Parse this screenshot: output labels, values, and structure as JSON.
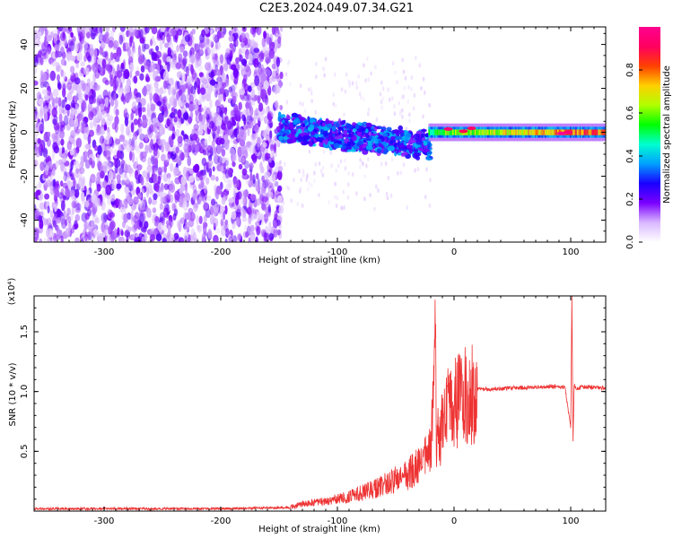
{
  "title": "C2E3.2024.049.07.34.G21",
  "chart_data": [
    {
      "type": "heatmap",
      "xlabel": "Height of straight line (km)",
      "ylabel": "Frequency (Hz)",
      "xlim": [
        -360,
        130
      ],
      "ylim": [
        -50,
        48
      ],
      "xticks": [
        -300,
        -200,
        -100,
        0,
        100
      ],
      "yticks": [
        -40,
        -20,
        0,
        20,
        40
      ],
      "colorbar": {
        "label": "Normalized spectral amplitude",
        "range": [
          0,
          1
        ],
        "ticks": [
          "0.0",
          "0.2",
          "0.4",
          "0.6",
          "0.8"
        ],
        "colors": [
          "#ffffff",
          "#d9b8ff",
          "#7a00ff",
          "#1a00ff",
          "#00a0ff",
          "#00ffd0",
          "#00ff00",
          "#b0ff00",
          "#ffd000",
          "#ff4000",
          "#ff0060",
          "#ff0090"
        ]
      },
      "regions": [
        {
          "x_range": [
            -360,
            -150
          ],
          "freq_range": [
            -50,
            48
          ],
          "amplitude": 0.15,
          "note_color": "purple noise"
        },
        {
          "x_range": [
            -150,
            -20
          ],
          "freq_center": 0,
          "amplitude_max": 0.4
        },
        {
          "x_range": [
            -20,
            130
          ],
          "freq_center": 0,
          "amplitude_max": 1.0
        }
      ]
    },
    {
      "type": "line",
      "xlabel": "Height of straight line (km)",
      "ylabel": "SNR (10 * v/v)",
      "yscale_label": "(x10⁴)",
      "xlim": [
        -360,
        130
      ],
      "ylim": [
        0,
        1.8
      ],
      "xticks": [
        -300,
        -200,
        -100,
        0,
        100
      ],
      "yticks": [
        0.5,
        1.0,
        1.5
      ],
      "ytick_labels": [
        "0.5",
        "1.0",
        "1.5"
      ],
      "color": "#ee3333",
      "series": [
        {
          "x": [
            -360,
            -300,
            -200,
            -140,
            -130,
            -110,
            -90,
            -70,
            -50,
            -40,
            -30,
            -25,
            -20,
            -18,
            -16,
            -15,
            -12,
            -10,
            -8,
            -5,
            -2,
            0,
            5,
            10,
            15,
            20,
            30,
            50,
            80,
            95,
            100,
            101,
            102,
            103,
            105,
            110,
            130
          ],
          "y": [
            0.02,
            0.02,
            0.02,
            0.03,
            0.06,
            0.08,
            0.12,
            0.18,
            0.26,
            0.3,
            0.38,
            0.45,
            0.5,
            0.9,
            1.45,
            0.6,
            0.6,
            0.7,
            0.82,
            0.85,
            0.88,
            0.9,
            0.95,
            0.97,
            1.0,
            1.02,
            1.02,
            1.03,
            1.04,
            1.04,
            0.7,
            1.8,
            0.6,
            1.05,
            1.03,
            1.04,
            1.03
          ]
        }
      ]
    }
  ]
}
